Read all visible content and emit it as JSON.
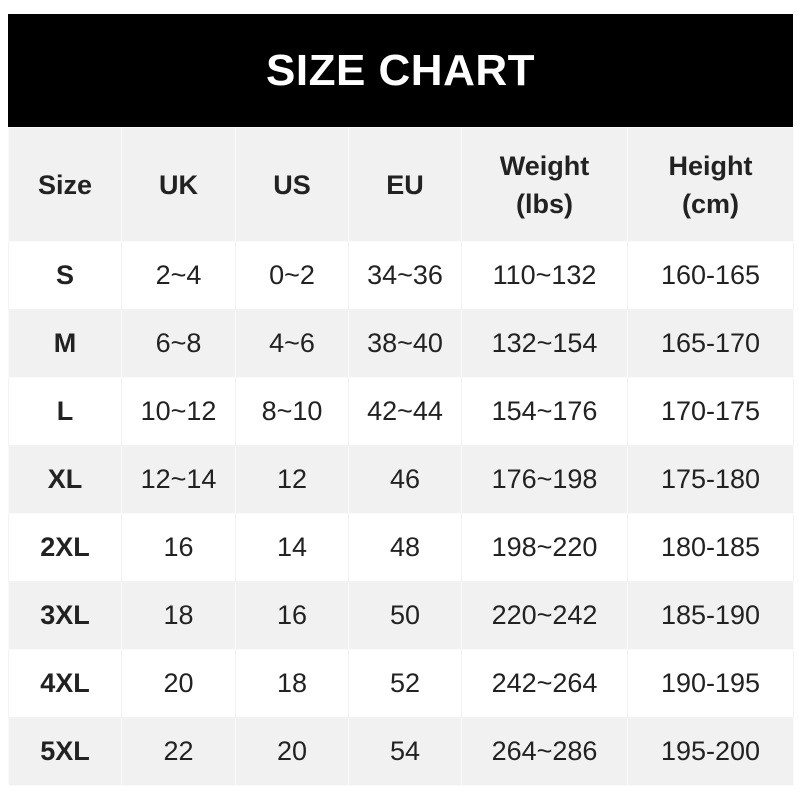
{
  "chart_data": {
    "type": "table",
    "title": "SIZE CHART",
    "columns": [
      "Size",
      "UK",
      "US",
      "EU",
      "Weight\n(lbs)",
      "Height\n(cm)"
    ],
    "rows": [
      [
        "S",
        "2~4",
        "0~2",
        "34~36",
        "110~132",
        "160-165"
      ],
      [
        "M",
        "6~8",
        "4~6",
        "38~40",
        "132~154",
        "165-170"
      ],
      [
        "L",
        "10~12",
        "8~10",
        "42~44",
        "154~176",
        "170-175"
      ],
      [
        "XL",
        "12~14",
        "12",
        "46",
        "176~198",
        "175-180"
      ],
      [
        "2XL",
        "16",
        "14",
        "48",
        "198~220",
        "180-185"
      ],
      [
        "3XL",
        "18",
        "16",
        "50",
        "220~242",
        "185-190"
      ],
      [
        "4XL",
        "20",
        "18",
        "52",
        "242~264",
        "190-195"
      ],
      [
        "5XL",
        "22",
        "20",
        "54",
        "264~286",
        "195-200"
      ]
    ]
  },
  "colors": {
    "title_bg": "#000000",
    "title_text": "#ffffff",
    "header_bg": "#f1f1f1",
    "stripe_bg": "#f1f1f1"
  }
}
